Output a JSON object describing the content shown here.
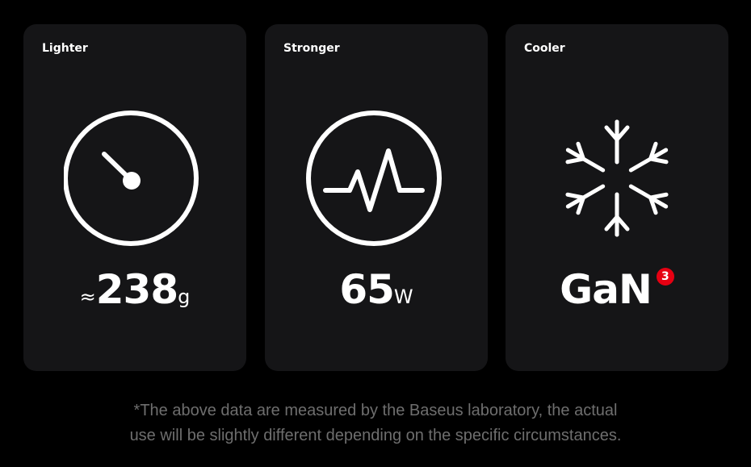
{
  "cards": [
    {
      "label": "Lighter",
      "prefix": "≈",
      "value": "238",
      "unit": "g",
      "icon": "gauge-icon"
    },
    {
      "label": "Stronger",
      "value": "65",
      "unit": "W",
      "icon": "pulse-icon"
    },
    {
      "label": "Cooler",
      "value": "GaN",
      "badge": "3",
      "icon": "snowflake-icon"
    }
  ],
  "colors": {
    "card": "#151517",
    "badge": "#e60012",
    "footnote": "#6e6e6e"
  },
  "footnote": {
    "line1": "*The above data are measured by the Baseus laboratory, the actual",
    "line2": "use will be slightly different depending on the specific circumstances."
  }
}
